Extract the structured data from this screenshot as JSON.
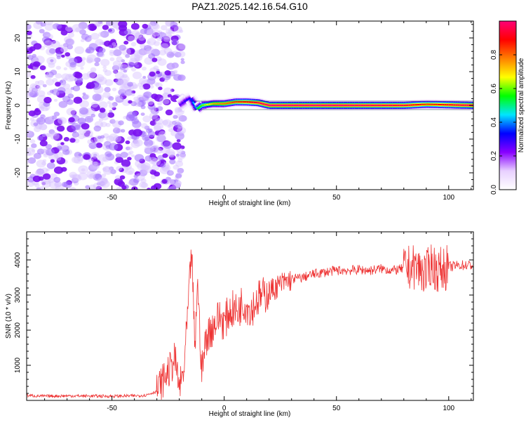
{
  "title": "PAZ1.2025.142.16.54.G10",
  "chart_data": [
    {
      "type": "heatmap",
      "panel": "spectrogram",
      "xlabel": "Height of straight line (km)",
      "ylabel": "Frequency (Hz)",
      "xlim": [
        -88,
        111
      ],
      "ylim": [
        -25,
        25
      ],
      "xticks": [
        -50,
        0,
        50,
        100
      ],
      "xtick_labels": [
        "-50",
        "0",
        "50",
        "100"
      ],
      "yticks": [
        -20,
        -10,
        0,
        10,
        20
      ],
      "ytick_labels": [
        "-20",
        "-10",
        "0",
        "10",
        "20"
      ],
      "colorbar": {
        "label": "Normalized spectral amplitude",
        "range": [
          0,
          1
        ],
        "ticks": [
          0.0,
          0.2,
          0.4,
          0.6,
          0.8
        ],
        "tick_labels": [
          "0.0",
          "0.2",
          "0.4",
          "0.6",
          "0.8"
        ],
        "colormap": [
          "#ffffff",
          "#e8d0ff",
          "#8800ff",
          "#0000ff",
          "#00e5ff",
          "#00ff00",
          "#ffff00",
          "#ff8000",
          "#ff0000",
          "#ff0077"
        ]
      },
      "noise_region_x": [
        -88,
        -20
      ],
      "signal_track": [
        {
          "x": -20,
          "freq": 0.0,
          "amp": 0.25
        },
        {
          "x": -17,
          "freq": 1.5,
          "amp": 0.3
        },
        {
          "x": -15,
          "freq": 2.0,
          "amp": 0.35
        },
        {
          "x": -12,
          "freq": -1.0,
          "amp": 0.55
        },
        {
          "x": -10,
          "freq": 0.0,
          "amp": 0.6
        },
        {
          "x": -5,
          "freq": 0.5,
          "amp": 0.75
        },
        {
          "x": 0,
          "freq": 0.5,
          "amp": 0.8
        },
        {
          "x": 5,
          "freq": 1.0,
          "amp": 0.85
        },
        {
          "x": 10,
          "freq": 1.0,
          "amp": 0.9
        },
        {
          "x": 15,
          "freq": 0.8,
          "amp": 0.95
        },
        {
          "x": 20,
          "freq": 0.0,
          "amp": 1.0
        },
        {
          "x": 50,
          "freq": 0.0,
          "amp": 1.0
        },
        {
          "x": 80,
          "freq": 0.0,
          "amp": 0.95
        },
        {
          "x": 90,
          "freq": 0.3,
          "amp": 0.85
        },
        {
          "x": 111,
          "freq": 0.0,
          "amp": 1.0
        }
      ]
    },
    {
      "type": "line",
      "panel": "snr",
      "xlabel": "Height of straight line (km)",
      "ylabel": "SNR (10 * v/v)",
      "xlim": [
        -88,
        111
      ],
      "ylim": [
        0,
        4800
      ],
      "xticks": [
        -50,
        0,
        50,
        100
      ],
      "xtick_labels": [
        "-50",
        "0",
        "50",
        "100"
      ],
      "yticks": [
        1000,
        2000,
        3000,
        4000
      ],
      "ytick_labels": [
        "1000",
        "2000",
        "3000",
        "4000"
      ],
      "series": [
        {
          "color": "#ee3333",
          "x": [
            -88,
            -80,
            -70,
            -60,
            -50,
            -40,
            -35,
            -30,
            -28,
            -26,
            -24,
            -22,
            -20,
            -18,
            -16,
            -14.5,
            -13,
            -12,
            -10,
            -8,
            -6,
            -4,
            -2,
            0,
            2,
            4,
            6,
            8,
            10,
            12,
            15,
            18,
            20,
            25,
            30,
            35,
            40,
            45,
            50,
            55,
            60,
            65,
            70,
            75,
            80,
            85,
            88,
            90,
            92,
            95,
            100,
            105,
            111
          ],
          "y": [
            140,
            120,
            130,
            125,
            120,
            130,
            150,
            260,
            500,
            700,
            900,
            1200,
            350,
            800,
            2700,
            4300,
            1300,
            3500,
            800,
            1800,
            2000,
            2200,
            2400,
            2200,
            2500,
            2600,
            2500,
            2800,
            2700,
            2600,
            2900,
            3000,
            3100,
            3300,
            3450,
            3500,
            3600,
            3650,
            3700,
            3700,
            3720,
            3700,
            3750,
            3700,
            3750,
            3800,
            3700,
            3600,
            3900,
            3700,
            3800,
            3850,
            3850
          ]
        }
      ]
    }
  ]
}
